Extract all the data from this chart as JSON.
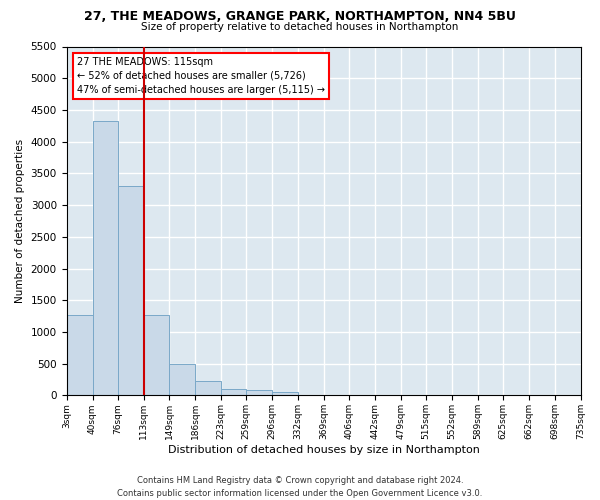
{
  "title": "27, THE MEADOWS, GRANGE PARK, NORTHAMPTON, NN4 5BU",
  "subtitle": "Size of property relative to detached houses in Northampton",
  "xlabel": "Distribution of detached houses by size in Northampton",
  "ylabel": "Number of detached properties",
  "footer_line1": "Contains HM Land Registry data © Crown copyright and database right 2024.",
  "footer_line2": "Contains public sector information licensed under the Open Government Licence v3.0.",
  "annotation_title": "27 THE MEADOWS: 115sqm",
  "annotation_line2": "← 52% of detached houses are smaller (5,726)",
  "annotation_line3": "47% of semi-detached houses are larger (5,115) →",
  "property_line_x": 113,
  "bin_edges": [
    3,
    40,
    76,
    113,
    149,
    186,
    223,
    259,
    296,
    332,
    369,
    406,
    442,
    479,
    515,
    552,
    589,
    625,
    662,
    698,
    735
  ],
  "bar_values": [
    1260,
    4330,
    3300,
    1270,
    490,
    220,
    100,
    80,
    60,
    5,
    5,
    0,
    0,
    0,
    0,
    0,
    0,
    0,
    0,
    0
  ],
  "bar_color": "#c9d9e8",
  "bar_edgecolor": "#7aa8c8",
  "line_color": "#cc0000",
  "background_color": "#dde8f0",
  "grid_color": "#ffffff",
  "ylim": [
    0,
    5500
  ],
  "yticks": [
    0,
    500,
    1000,
    1500,
    2000,
    2500,
    3000,
    3500,
    4000,
    4500,
    5000,
    5500
  ]
}
